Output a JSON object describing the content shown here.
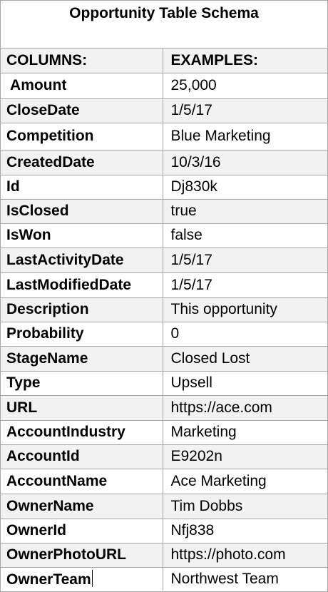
{
  "title": "Opportunity Table Schema",
  "header": {
    "columns_label": "COLUMNS:",
    "examples_label": "EXAMPLES:"
  },
  "rows": [
    {
      "column": " Amount",
      "example": "25,000"
    },
    {
      "column": "CloseDate",
      "example": "1/5/17"
    },
    {
      "column": "Competition",
      "example": "Blue Marketing"
    },
    {
      "column": "CreatedDate",
      "example": "10/3/16"
    },
    {
      "column": "Id",
      "example": "Dj830k"
    },
    {
      "column": "IsClosed",
      "example": "true"
    },
    {
      "column": "IsWon",
      "example": "false"
    },
    {
      "column": "LastActivityDate",
      "example": "1/5/17"
    },
    {
      "column": "LastModifiedDate",
      "example": "1/5/17"
    },
    {
      "column": "Description",
      "example": "This opportunity"
    },
    {
      "column": "Probability",
      "example": "0"
    },
    {
      "column": "StageName",
      "example": "Closed Lost"
    },
    {
      "column": "Type",
      "example": "Upsell"
    },
    {
      "column": "URL",
      "example": "https://ace.com"
    },
    {
      "column": "AccountIndustry",
      "example": "Marketing"
    },
    {
      "column": "AccountId",
      "example": "E9202n"
    },
    {
      "column": "AccountName",
      "example": "Ace Marketing"
    },
    {
      "column": "OwnerName",
      "example": "Tim Dobbs"
    },
    {
      "column": "OwnerId",
      "example": "Nfj838"
    },
    {
      "column": "OwnerPhotoURL",
      "example": "https://photo.com"
    },
    {
      "column": "OwnerTeam",
      "example": "Northwest Team"
    }
  ],
  "colors": {
    "shaded_row": "#f2f2f2",
    "plain_row": "#ffffff",
    "grid_line": "#a6a6a6"
  }
}
